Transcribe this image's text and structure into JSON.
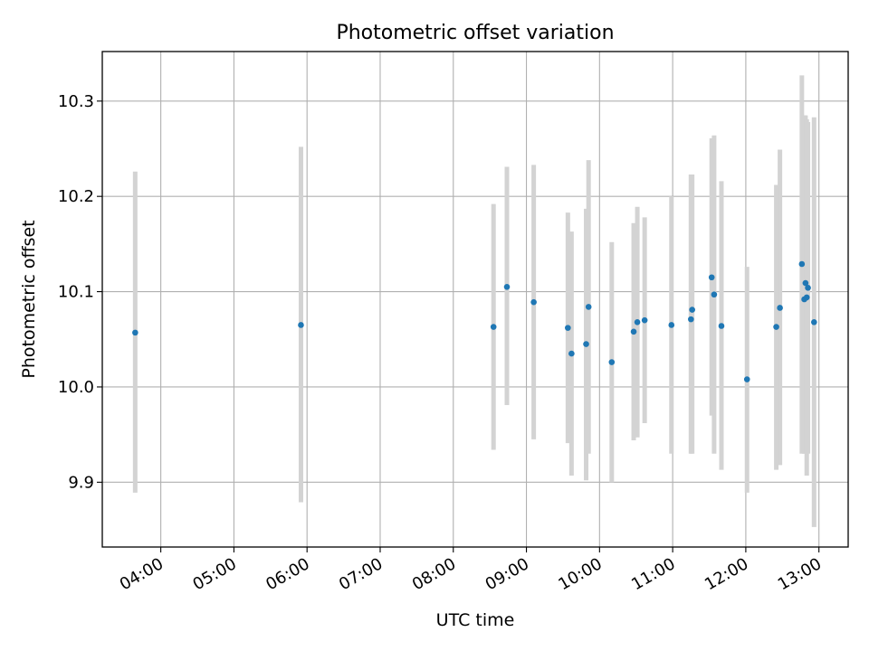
{
  "chart_data": {
    "type": "scatter",
    "title": "Photometric offset variation",
    "xlabel": "UTC time",
    "ylabel": "Photometric offset",
    "xlim": [
      "03:12",
      "13:24"
    ],
    "ylim": [
      9.832,
      10.352
    ],
    "grid": true,
    "x_ticks": [
      "04:00",
      "05:00",
      "06:00",
      "07:00",
      "08:00",
      "09:00",
      "10:00",
      "11:00",
      "12:00",
      "13:00"
    ],
    "y_ticks": [
      9.9,
      10.0,
      10.1,
      10.2,
      10.3
    ],
    "y_tick_labels": [
      "9.9",
      "10.0",
      "10.1",
      "10.2",
      "10.3"
    ],
    "point_color": "#1f77b4",
    "errorbar_color": "#d3d3d3",
    "points": [
      {
        "x": "03:39",
        "y": 10.057,
        "err_low": 9.889,
        "err_high": 10.226
      },
      {
        "x": "05:55",
        "y": 10.065,
        "err_low": 9.879,
        "err_high": 10.252
      },
      {
        "x": "08:33",
        "y": 10.063,
        "err_low": 9.934,
        "err_high": 10.192
      },
      {
        "x": "08:44",
        "y": 10.105,
        "err_low": 9.981,
        "err_high": 10.231
      },
      {
        "x": "09:06",
        "y": 10.089,
        "err_low": 9.945,
        "err_high": 10.233
      },
      {
        "x": "09:34",
        "y": 10.062,
        "err_low": 9.941,
        "err_high": 10.183
      },
      {
        "x": "09:37",
        "y": 10.035,
        "err_low": 9.907,
        "err_high": 10.163
      },
      {
        "x": "09:49",
        "y": 10.045,
        "err_low": 9.902,
        "err_high": 10.187
      },
      {
        "x": "09:51",
        "y": 10.084,
        "err_low": 9.93,
        "err_high": 10.238
      },
      {
        "x": "10:10",
        "y": 10.026,
        "err_low": 9.9,
        "err_high": 10.152
      },
      {
        "x": "10:28",
        "y": 10.058,
        "err_low": 9.944,
        "err_high": 10.172
      },
      {
        "x": "10:31",
        "y": 10.068,
        "err_low": 9.947,
        "err_high": 10.189
      },
      {
        "x": "10:37",
        "y": 10.07,
        "err_low": 9.962,
        "err_high": 10.178
      },
      {
        "x": "10:59",
        "y": 10.065,
        "err_low": 9.93,
        "err_high": 10.2
      },
      {
        "x": "11:15",
        "y": 10.071,
        "err_low": 9.93,
        "err_high": 10.223
      },
      {
        "x": "11:16",
        "y": 10.081,
        "err_low": 9.93,
        "err_high": 10.223
      },
      {
        "x": "11:32",
        "y": 10.115,
        "err_low": 9.97,
        "err_high": 10.261
      },
      {
        "x": "11:34",
        "y": 10.097,
        "err_low": 9.93,
        "err_high": 10.264
      },
      {
        "x": "11:40",
        "y": 10.064,
        "err_low": 9.913,
        "err_high": 10.216
      },
      {
        "x": "12:01",
        "y": 10.008,
        "err_low": 9.889,
        "err_high": 10.126
      },
      {
        "x": "12:25",
        "y": 10.063,
        "err_low": 9.913,
        "err_high": 10.212
      },
      {
        "x": "12:28",
        "y": 10.083,
        "err_low": 9.918,
        "err_high": 10.249
      },
      {
        "x": "12:46",
        "y": 10.129,
        "err_low": 9.93,
        "err_high": 10.327
      },
      {
        "x": "12:48",
        "y": 10.092,
        "err_low": 9.93,
        "err_high": 10.285
      },
      {
        "x": "12:49",
        "y": 10.109,
        "err_low": 9.93,
        "err_high": 10.285
      },
      {
        "x": "12:50",
        "y": 10.094,
        "err_low": 9.907,
        "err_high": 10.281
      },
      {
        "x": "12:51",
        "y": 10.104,
        "err_low": 9.93,
        "err_high": 10.278
      },
      {
        "x": "12:56",
        "y": 10.068,
        "err_low": 9.853,
        "err_high": 10.283
      }
    ]
  }
}
